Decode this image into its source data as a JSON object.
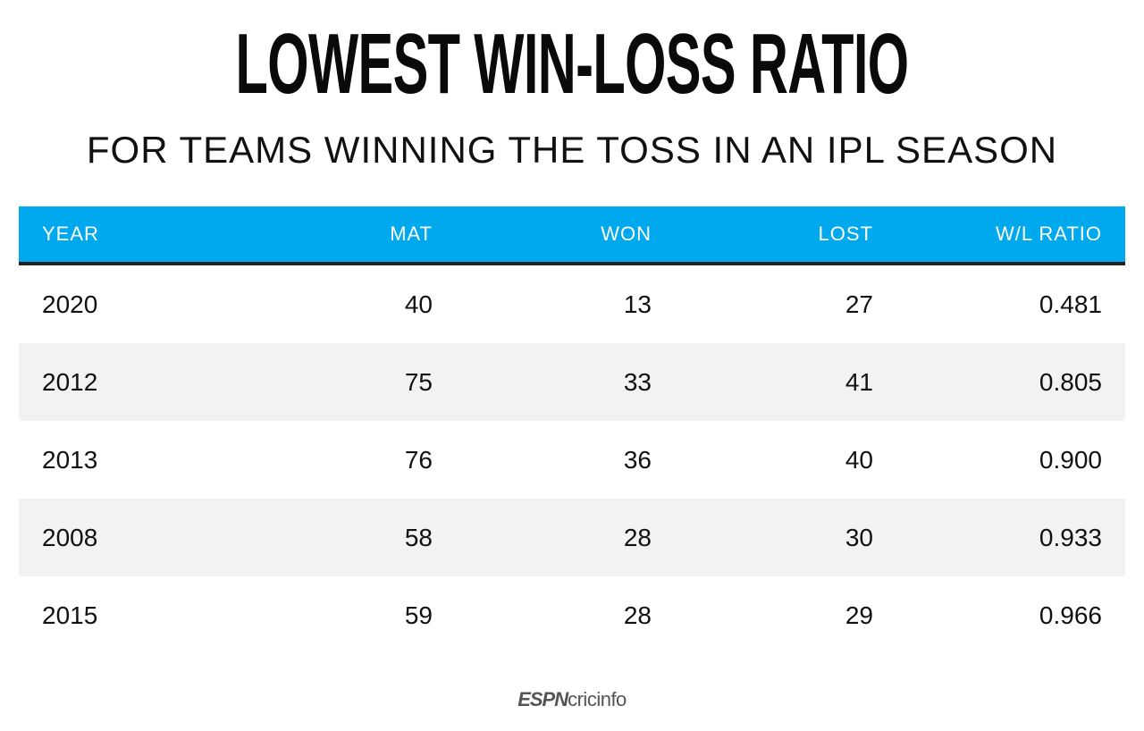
{
  "title": "LOWEST WIN-LOSS RATIO",
  "subtitle": "FOR TEAMS WINNING THE TOSS IN AN IPL SEASON",
  "logo": {
    "part1": "ESPN",
    "part2": "cricinfo"
  },
  "colors": {
    "header_bg": "#00a9ee",
    "header_rule": "#222222",
    "stripe": "#f2f2f2",
    "text": "#111111"
  },
  "chart_data": {
    "type": "table",
    "title": "LOWEST WIN-LOSS RATIO",
    "subtitle": "FOR TEAMS WINNING THE TOSS IN AN IPL SEASON",
    "columns": [
      "YEAR",
      "MAT",
      "WON",
      "LOST",
      "W/L RATIO"
    ],
    "rows": [
      [
        "2020",
        "40",
        "13",
        "27",
        "0.481"
      ],
      [
        "2012",
        "75",
        "33",
        "41",
        "0.805"
      ],
      [
        "2013",
        "76",
        "36",
        "40",
        "0.900"
      ],
      [
        "2008",
        "58",
        "28",
        "30",
        "0.933"
      ],
      [
        "2015",
        "59",
        "28",
        "29",
        "0.966"
      ]
    ]
  }
}
